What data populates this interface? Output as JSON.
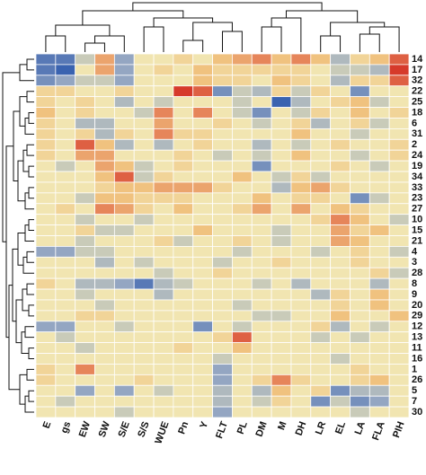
{
  "chart_data": {
    "type": "heatmap",
    "columns": [
      "E",
      "gs",
      "EW",
      "SW",
      "S/E",
      "S/S",
      "WUE",
      "Pn",
      "Y",
      "FLT",
      "PL",
      "DM",
      "M",
      "DH",
      "LR",
      "EL",
      "LA",
      "FLA",
      "PIH"
    ],
    "rows": [
      "14",
      "17",
      "32",
      "22",
      "25",
      "18",
      "6",
      "31",
      "2",
      "24",
      "19",
      "34",
      "33",
      "23",
      "27",
      "10",
      "15",
      "21",
      "4",
      "3",
      "28",
      "8",
      "9",
      "20",
      "29",
      "12",
      "13",
      "11",
      "16",
      "1",
      "26",
      "5",
      "7",
      "30"
    ],
    "values": [
      [
        -2.5,
        -2.5,
        -0.5,
        1.5,
        -1.5,
        0,
        0,
        0.5,
        0,
        1,
        1.5,
        2,
        1,
        2,
        1,
        -1,
        0.5,
        1,
        2.5
      ],
      [
        -2.5,
        -3,
        0,
        1.5,
        -1.5,
        0,
        0.5,
        0,
        1,
        0.5,
        0.5,
        0.5,
        0.5,
        0.5,
        0,
        -0.5,
        -0.5,
        -1,
        3
      ],
      [
        -2,
        -1.5,
        -0.5,
        -0.5,
        -1.5,
        0,
        0,
        0,
        1,
        0.5,
        0.5,
        0,
        1,
        0.5,
        0,
        -1,
        0.5,
        0.5,
        2.5
      ],
      [
        0.5,
        0.5,
        0,
        0,
        0.5,
        0,
        0,
        3,
        2.5,
        -2,
        -0.5,
        -1,
        0.5,
        -0.5,
        0.5,
        0,
        -2,
        0,
        0
      ],
      [
        0.5,
        0,
        0.5,
        0,
        -1,
        0,
        -0.5,
        0,
        0,
        0,
        -0.5,
        0,
        -3,
        -1,
        0,
        0.5,
        1,
        -0.5,
        0
      ],
      [
        1,
        0,
        0.5,
        0,
        0,
        -0.5,
        2,
        0,
        2,
        0,
        -0.5,
        -2,
        0,
        -0.5,
        0.5,
        0,
        1,
        0,
        0.5
      ],
      [
        0.5,
        0,
        -1,
        -1,
        0,
        0,
        1.5,
        0,
        0,
        0.5,
        0,
        -0.5,
        0,
        0.5,
        -1,
        0,
        0.5,
        -0.5,
        0
      ],
      [
        0.5,
        0,
        0.5,
        -1,
        0.5,
        0,
        2,
        0.5,
        0.5,
        0,
        0,
        0,
        0,
        1,
        0,
        0,
        -0.5,
        0,
        0
      ],
      [
        0.5,
        0,
        2.5,
        1,
        -1,
        0,
        -1,
        0,
        0.5,
        0,
        0,
        -1,
        0,
        -0.5,
        0,
        0.5,
        0,
        0,
        0.5
      ],
      [
        0.5,
        0,
        1.5,
        1.5,
        0,
        0,
        0,
        0.5,
        0,
        -0.5,
        0,
        -0.5,
        0,
        1,
        0,
        0,
        -0.5,
        0,
        0.5
      ],
      [
        0,
        -0.5,
        0,
        1.5,
        1,
        -0.5,
        0,
        0.5,
        0,
        0,
        0,
        -2,
        0,
        0,
        0,
        0.5,
        0,
        -0.5,
        0
      ],
      [
        0,
        0,
        0,
        1,
        2.5,
        -0.5,
        0.5,
        0,
        0,
        0,
        1,
        0,
        -0.5,
        0.5,
        -0.5,
        0,
        0,
        0,
        0
      ],
      [
        0,
        0,
        0,
        0.5,
        1,
        1,
        1.5,
        1.5,
        1.5,
        0.5,
        0,
        0,
        -1,
        1,
        1.5,
        0.5,
        0,
        0,
        0
      ],
      [
        0,
        0,
        -0.5,
        1,
        1,
        0.5,
        0.5,
        0.5,
        0,
        0,
        0,
        1,
        0,
        0.5,
        0.5,
        0,
        -2,
        -0.5,
        0
      ],
      [
        0,
        0.5,
        0,
        2,
        1.5,
        0.5,
        0,
        1,
        0,
        0,
        0.5,
        1.5,
        0,
        1.5,
        0,
        1,
        0.5,
        0,
        0
      ],
      [
        0,
        0,
        -0.5,
        0,
        0,
        -0.5,
        0,
        0,
        0,
        0,
        0,
        0,
        0,
        0,
        0.5,
        2,
        1,
        0,
        -0.5
      ],
      [
        0,
        0,
        0.5,
        -0.5,
        -0.5,
        0,
        0,
        0,
        1,
        0,
        0,
        0,
        -0.5,
        0,
        0,
        1.5,
        0.5,
        1,
        0
      ],
      [
        0,
        0,
        -0.5,
        0,
        0,
        0,
        0.5,
        -0.5,
        0,
        0,
        0.5,
        0,
        -0.5,
        0,
        0,
        1.5,
        1,
        0,
        0
      ],
      [
        -1.5,
        -1.5,
        -0.5,
        -0.5,
        0,
        0,
        0,
        0,
        0,
        0,
        -0.5,
        0,
        0,
        0,
        -0.5,
        0,
        0.5,
        0,
        -0.5
      ],
      [
        0,
        0,
        0,
        -1,
        0,
        -0.5,
        0,
        0,
        0,
        -0.5,
        0,
        0,
        0.5,
        0,
        0,
        0,
        0.5,
        0,
        0
      ],
      [
        0,
        0,
        0,
        0,
        0,
        0,
        -0.5,
        0,
        0,
        0.5,
        0,
        0,
        0,
        0,
        0,
        0,
        0,
        0.5,
        -0.5
      ],
      [
        0.5,
        0,
        -1,
        -1,
        -1.5,
        -2.5,
        -1,
        -0.5,
        0,
        0,
        0,
        -0.5,
        0,
        -1,
        0,
        0,
        0,
        -1,
        0
      ],
      [
        0,
        0,
        -0.5,
        0,
        0,
        0,
        -1,
        0,
        0,
        0,
        0,
        0,
        0,
        0,
        -1,
        0.5,
        0,
        1,
        0
      ],
      [
        0,
        0,
        0,
        -0.5,
        0,
        0,
        0,
        0,
        0,
        0,
        -0.5,
        0,
        0,
        0,
        0,
        0.5,
        0,
        1,
        0
      ],
      [
        0,
        0,
        0.5,
        0.5,
        0,
        0,
        0,
        0,
        0,
        0,
        0,
        -0.5,
        -0.5,
        0,
        0,
        1,
        0,
        0,
        1
      ],
      [
        -1.5,
        -1.5,
        0,
        0,
        -0.5,
        0,
        0,
        0,
        -2,
        0,
        -0.5,
        0,
        0,
        0,
        0.5,
        -1,
        0,
        -0.5,
        0
      ],
      [
        0,
        -0.5,
        0,
        0,
        0,
        0,
        0,
        0,
        0,
        0.5,
        2.5,
        0,
        0,
        0,
        -0.5,
        0,
        -0.5,
        0,
        0
      ],
      [
        0,
        0,
        -0.5,
        0,
        0,
        0,
        0,
        0.5,
        0,
        0,
        1,
        0,
        0,
        0,
        0,
        0,
        0,
        0,
        0
      ],
      [
        0,
        0,
        0,
        0,
        0,
        0,
        0,
        0,
        0,
        -0.5,
        0,
        0,
        0,
        0,
        0,
        -0.5,
        0,
        0,
        0
      ],
      [
        0.5,
        0,
        2,
        0,
        0,
        0,
        0,
        0,
        0,
        -1.5,
        0,
        0,
        0,
        0,
        0,
        0,
        0.5,
        0,
        0
      ],
      [
        0.5,
        0,
        0,
        0,
        0,
        0.5,
        0,
        0,
        0,
        -1.5,
        0,
        0.5,
        2,
        0.5,
        0,
        0,
        0.5,
        1,
        0
      ],
      [
        0,
        0,
        -1.5,
        0,
        -1.5,
        0,
        -0.5,
        0,
        0,
        -1,
        0,
        -1,
        1,
        0,
        0.5,
        -2,
        -1,
        -1,
        0
      ],
      [
        0,
        -0.5,
        0,
        0,
        0,
        0,
        0,
        0,
        0,
        -1,
        0,
        -0.5,
        0.5,
        0,
        -2,
        -0.5,
        -2,
        -1.5,
        0
      ],
      [
        0,
        0,
        0,
        0,
        -0.5,
        0,
        0,
        0,
        0,
        -1.5,
        0,
        0,
        0,
        0,
        0,
        0,
        -0.5,
        0,
        0
      ]
    ],
    "colorscale": [
      [
        -3,
        "#3a63b0"
      ],
      [
        -1.5,
        "#94a6c2"
      ],
      [
        -0.5,
        "#c9cbb9"
      ],
      [
        0,
        "#f1e5b1"
      ],
      [
        1,
        "#f0c27f"
      ],
      [
        2,
        "#e6855a"
      ],
      [
        3,
        "#d63a2b"
      ]
    ]
  }
}
